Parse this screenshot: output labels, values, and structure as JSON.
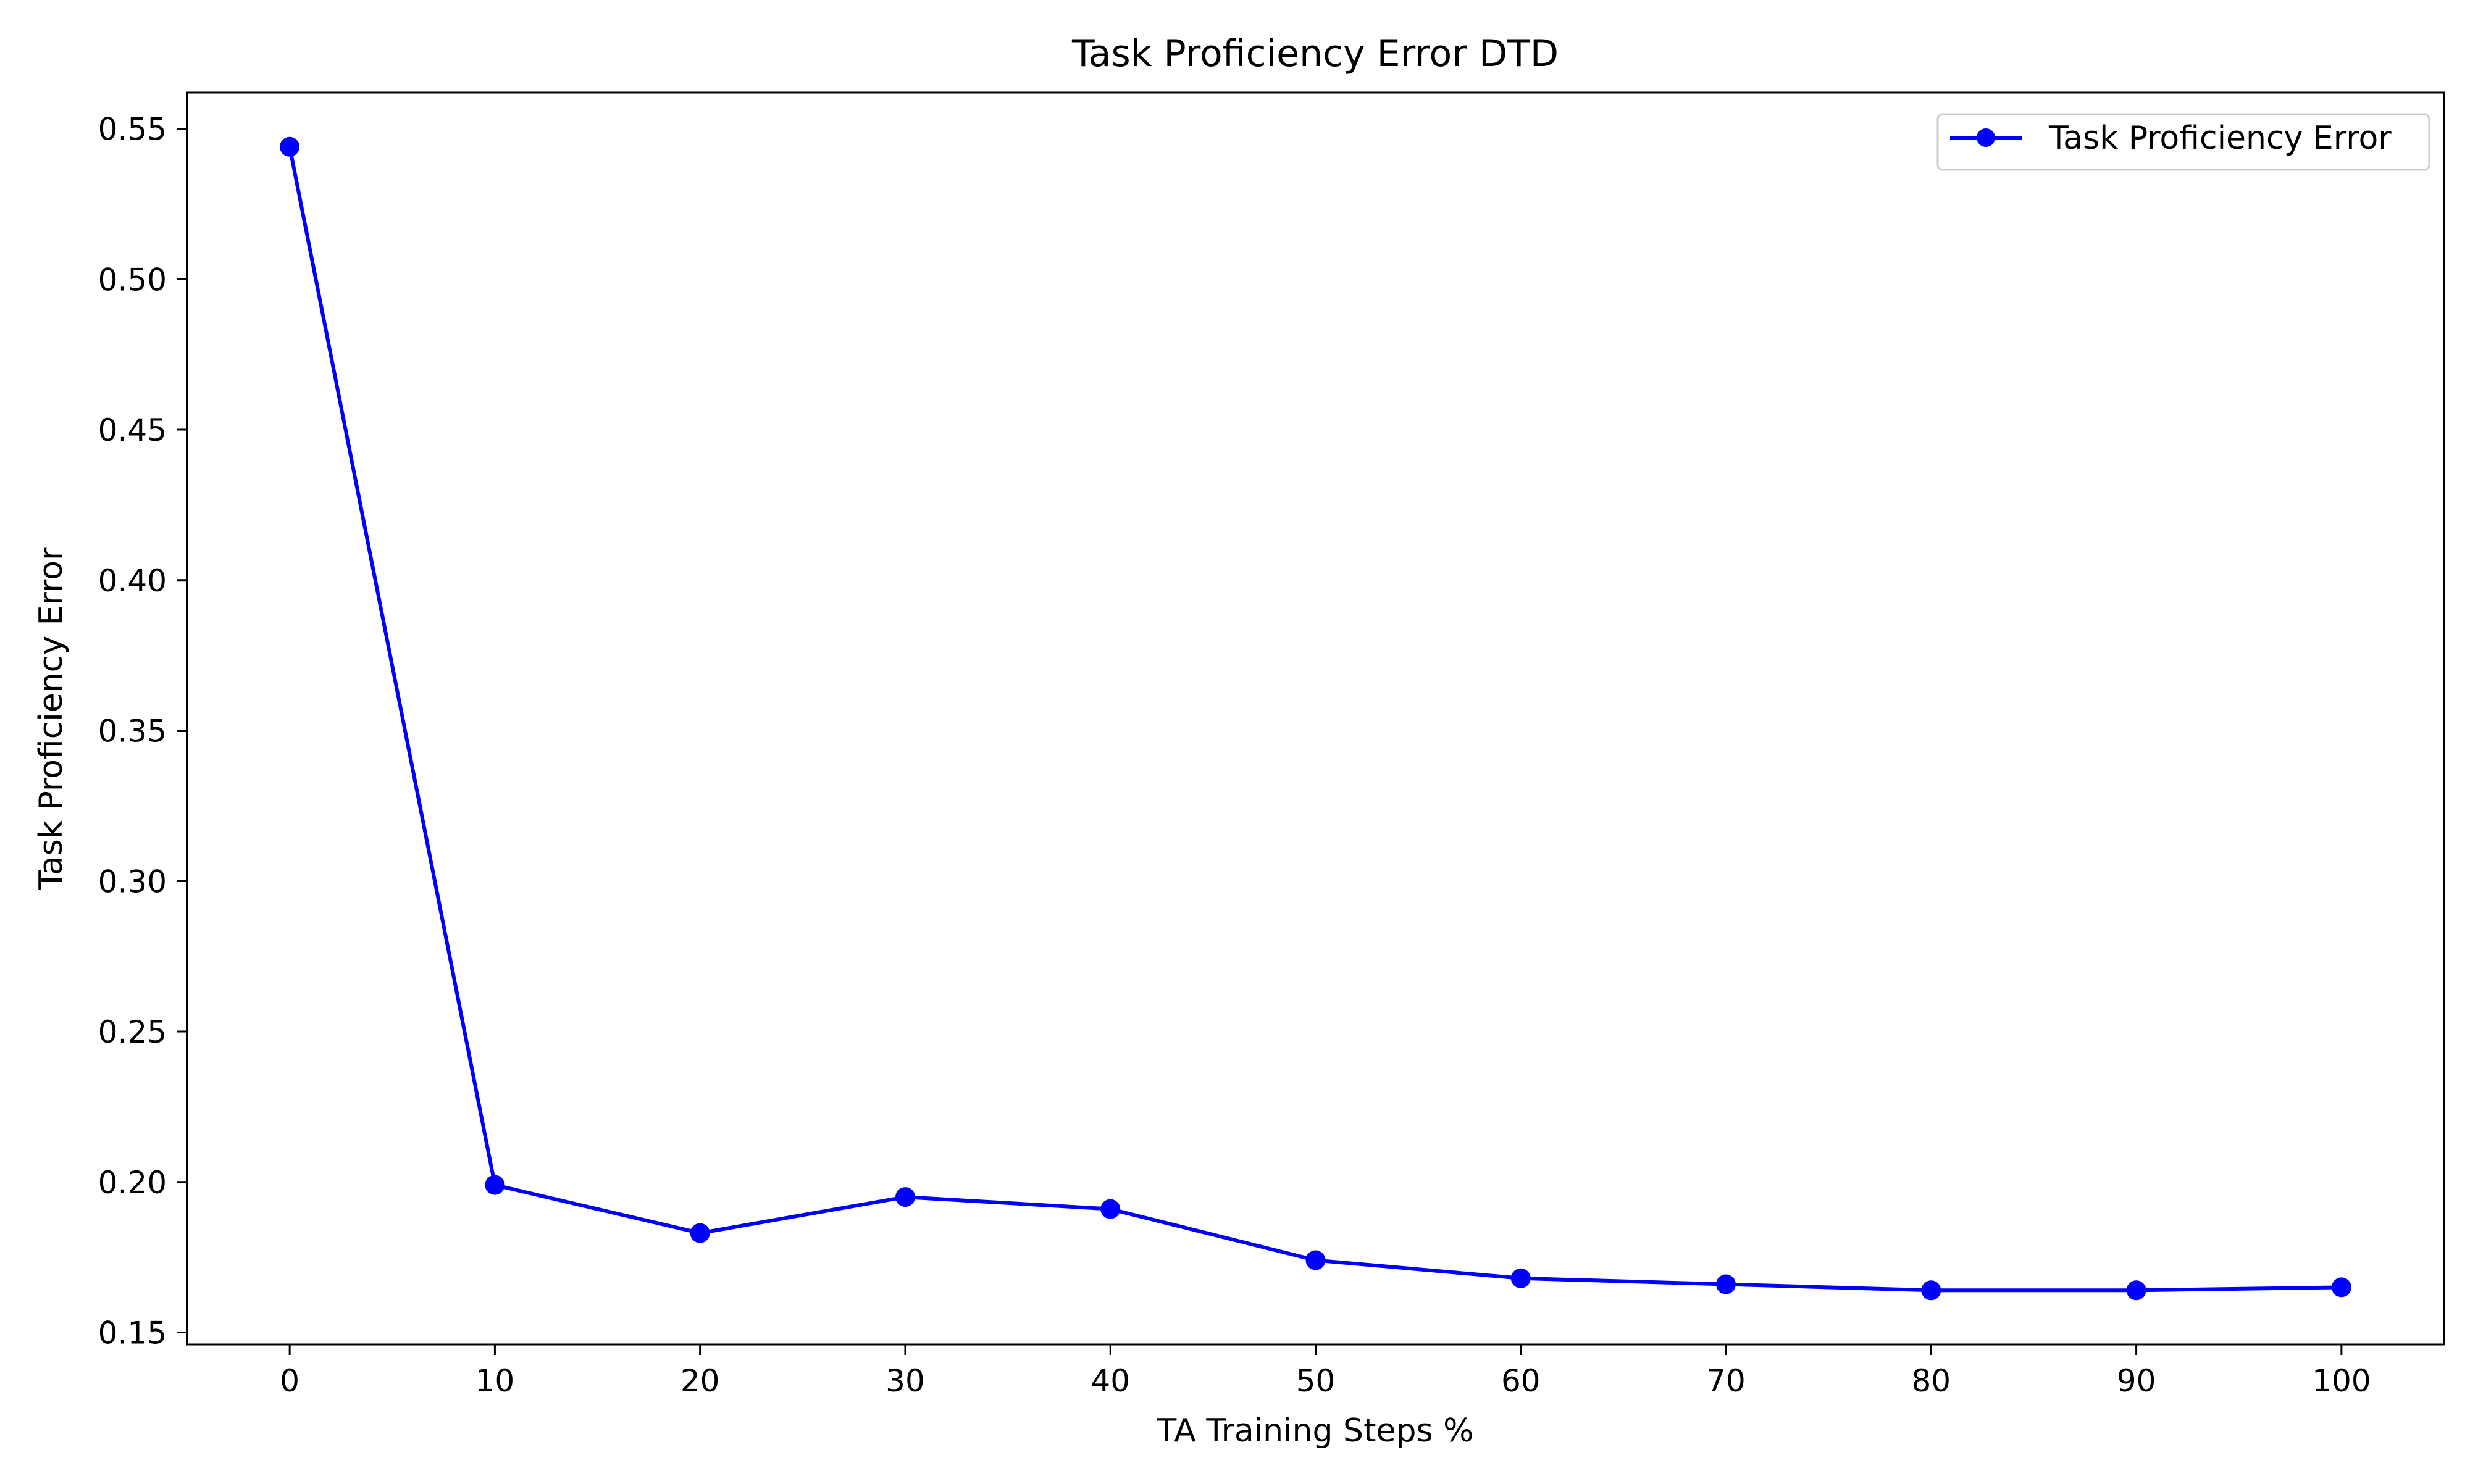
{
  "chart_data": {
    "type": "line",
    "title": "Task Proficiency Error DTD",
    "xlabel": "TA Training Steps %",
    "ylabel": "Task Proficiency Error",
    "xlim": [
      -5,
      105
    ],
    "ylim": [
      0.146,
      0.562
    ],
    "xticks": [
      0,
      10,
      20,
      30,
      40,
      50,
      60,
      70,
      80,
      90,
      100
    ],
    "yticks": [
      0.15,
      0.2,
      0.25,
      0.3,
      0.35,
      0.4,
      0.45,
      0.5,
      0.55
    ],
    "grid": false,
    "legend_position": "top-right",
    "series": [
      {
        "name": "Task Proficiency Error",
        "color": "#0000ff",
        "marker": "circle",
        "x": [
          0,
          10,
          20,
          30,
          40,
          50,
          60,
          70,
          80,
          90,
          100
        ],
        "y": [
          0.544,
          0.199,
          0.183,
          0.195,
          0.191,
          0.174,
          0.168,
          0.166,
          0.164,
          0.164,
          0.165
        ]
      }
    ]
  }
}
